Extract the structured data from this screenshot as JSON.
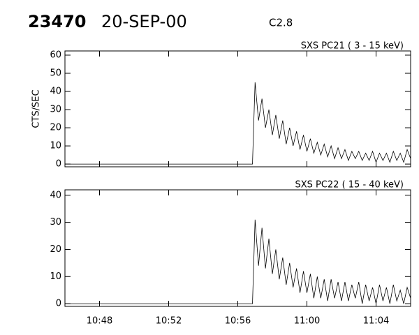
{
  "header": {
    "event": "23470",
    "date": "20-SEP-00",
    "class": "C2.8"
  },
  "chart_data": [
    {
      "type": "line",
      "title": "SXS PC21  (  3 - 15 keV)",
      "ylabel": "CTS/SEC",
      "color": "#000000",
      "xlim": [
        646,
        666
      ],
      "xticks": [
        648,
        652,
        656,
        660,
        664
      ],
      "ylim": [
        -1.5,
        62.3
      ],
      "yticks": [
        0,
        10,
        20,
        30,
        40,
        50,
        60
      ],
      "x": [
        646,
        656.85,
        657.0,
        657.2,
        657.4,
        657.6,
        657.8,
        658.0,
        658.2,
        658.4,
        658.6,
        658.8,
        659.0,
        659.2,
        659.4,
        659.6,
        659.8,
        660.0,
        660.2,
        660.4,
        660.6,
        660.8,
        661.0,
        661.2,
        661.4,
        661.6,
        661.8,
        662.0,
        662.2,
        662.4,
        662.6,
        662.8,
        663.0,
        663.2,
        663.4,
        663.6,
        663.8,
        664.0,
        664.2,
        664.4,
        664.6,
        664.8,
        665.0,
        665.2,
        665.4,
        665.6,
        665.8,
        666.0
      ],
      "values": [
        0,
        0,
        45,
        24,
        36,
        20,
        30,
        16,
        27,
        14,
        24,
        11,
        20,
        10,
        18,
        8,
        16,
        7,
        14,
        6,
        12,
        5,
        11,
        4,
        10,
        3,
        9,
        3,
        8,
        2,
        7,
        3,
        7,
        2,
        6,
        2,
        7,
        1,
        6,
        2,
        6,
        1,
        7,
        2,
        6,
        1,
        8,
        3
      ]
    },
    {
      "type": "line",
      "title": "SXS PC22  ( 15 - 40 keV)",
      "color": "#000000",
      "xlim": [
        646,
        666
      ],
      "xticks": [
        {
          "value": 648,
          "label": "10:48"
        },
        {
          "value": 652,
          "label": "10:52"
        },
        {
          "value": 656,
          "label": "10:56"
        },
        {
          "value": 660,
          "label": "11:00"
        },
        {
          "value": 664,
          "label": "11:04"
        }
      ],
      "ylim": [
        -1,
        42
      ],
      "yticks": [
        0,
        10,
        20,
        30,
        40
      ],
      "x": [
        646,
        656.85,
        657.0,
        657.2,
        657.4,
        657.6,
        657.8,
        658.0,
        658.2,
        658.4,
        658.6,
        658.8,
        659.0,
        659.2,
        659.4,
        659.6,
        659.8,
        660.0,
        660.2,
        660.4,
        660.6,
        660.8,
        661.0,
        661.2,
        661.4,
        661.6,
        661.8,
        662.0,
        662.2,
        662.4,
        662.6,
        662.8,
        663.0,
        663.2,
        663.4,
        663.6,
        663.8,
        664.0,
        664.2,
        664.4,
        664.6,
        664.8,
        665.0,
        665.2,
        665.4,
        665.6,
        665.8,
        666.0
      ],
      "values": [
        0,
        0,
        31,
        14,
        28,
        13,
        24,
        11,
        20,
        9,
        17,
        7,
        15,
        6,
        13,
        4,
        12,
        4,
        11,
        2,
        10,
        2,
        9,
        1,
        9,
        2,
        8,
        1,
        8,
        1,
        7,
        2,
        8,
        0,
        7,
        1,
        6,
        0,
        7,
        1,
        6,
        0,
        7,
        1,
        5,
        0,
        6,
        2
      ]
    }
  ]
}
